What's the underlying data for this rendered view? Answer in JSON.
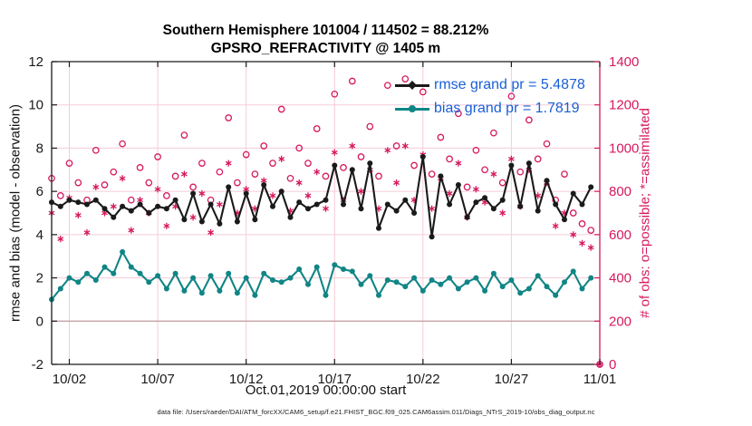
{
  "caption": "data file: /Users/raeder/DAI/ATM_forcXX/CAM6_setup/f.e21.FHIST_BGC.f09_025.CAM6assim.011/Diags_NTrS_2019-10/obs_diag_output.nc",
  "colors": {
    "pink": "#d6185e",
    "grid": "#f5ccd7",
    "zero_line": "#c7a3a8",
    "teal": "#118585",
    "black": "#1a1a1a",
    "legend_text": "#1a5fd7",
    "axis_text": "#1a1a1a"
  },
  "chart_data": {
    "type": "line",
    "title_line1": "Southern Hemisphere 101004 / 114502 = 88.212%",
    "title_line2": "GPSRO_REFRACTIVITY @ 1405 m",
    "xlabel": "Oct.01,2019 00:00:00 start",
    "ylabel_left": "rmse and bias (model - observation)",
    "ylabel_right": "# of obs: o=possible; *=assimilated",
    "grid": true,
    "legend": {
      "position": "upper-right-inside",
      "rmse_label": "rmse grand pr = 5.4878",
      "bias_label": "bias grand pr = 1.7819"
    },
    "x_start": "2019-10-01 00:00:00",
    "x_span_days": 31,
    "x_step_days": 0.5,
    "x_ticks": {
      "positions_days": [
        1,
        6,
        11,
        16,
        21,
        26,
        31
      ],
      "labels": [
        "10/02",
        "10/07",
        "10/12",
        "10/17",
        "10/22",
        "10/27",
        "11/01"
      ]
    },
    "y_left": {
      "min": -2,
      "max": 12,
      "ticks": [
        -2,
        0,
        2,
        4,
        6,
        8,
        10,
        12
      ]
    },
    "y_right": {
      "min": 0,
      "max": 1400,
      "ticks": [
        0,
        200,
        400,
        600,
        800,
        1000,
        1200,
        1400
      ]
    },
    "zero_reference_left": 0,
    "series": [
      {
        "name": "rmse",
        "axis": "left",
        "style": "line",
        "marker": "filled-circle",
        "color_key": "black",
        "grand_mean": 5.4878,
        "values": [
          5.5,
          5.3,
          5.6,
          5.5,
          5.4,
          5.6,
          5.2,
          4.8,
          5.3,
          5.1,
          5.4,
          5.0,
          5.3,
          5.2,
          5.6,
          4.7,
          5.9,
          4.6,
          5.4,
          4.5,
          6.2,
          4.6,
          5.9,
          4.7,
          6.3,
          5.3,
          6.0,
          4.8,
          5.5,
          5.2,
          5.4,
          5.6,
          7.2,
          5.4,
          7.0,
          5.2,
          7.3,
          4.3,
          5.4,
          5.1,
          5.6,
          5.0,
          7.6,
          3.9,
          6.7,
          5.4,
          6.3,
          4.8,
          5.5,
          5.7,
          5.2,
          5.6,
          7.2,
          5.3,
          7.3,
          5.1,
          6.5,
          5.4,
          4.7,
          5.9,
          5.4,
          6.2,
          null
        ]
      },
      {
        "name": "bias",
        "axis": "left",
        "style": "line",
        "marker": "filled-circle",
        "color_key": "teal",
        "grand_mean": 1.7819,
        "values": [
          1.0,
          1.5,
          2.0,
          1.8,
          2.2,
          1.9,
          2.5,
          2.2,
          3.2,
          2.5,
          2.2,
          1.8,
          2.1,
          1.5,
          2.2,
          1.4,
          2.0,
          1.3,
          2.1,
          1.4,
          2.2,
          1.3,
          2.0,
          1.2,
          2.2,
          1.9,
          1.8,
          2.0,
          2.4,
          1.7,
          2.5,
          1.2,
          2.6,
          2.4,
          2.3,
          1.7,
          2.1,
          1.2,
          1.9,
          1.8,
          1.6,
          2.0,
          1.4,
          1.9,
          1.7,
          2.0,
          1.5,
          1.8,
          2.0,
          1.4,
          2.2,
          1.6,
          1.9,
          1.3,
          1.5,
          2.1,
          1.6,
          1.2,
          1.8,
          2.3,
          1.5,
          2.0,
          null
        ]
      },
      {
        "name": "possible_obs",
        "axis": "right",
        "style": "scatter",
        "marker": "open-circle",
        "color_key": "pink",
        "values": [
          860,
          780,
          930,
          840,
          760,
          990,
          830,
          890,
          1020,
          760,
          910,
          840,
          960,
          780,
          870,
          1060,
          820,
          930,
          760,
          890,
          1140,
          840,
          970,
          880,
          1010,
          930,
          1180,
          860,
          1000,
          930,
          1090,
          870,
          1250,
          910,
          1310,
          960,
          1100,
          870,
          1290,
          1010,
          1320,
          920,
          1260,
          880,
          1050,
          950,
          1160,
          820,
          990,
          900,
          1070,
          840,
          1240,
          890,
          1130,
          950,
          1020,
          760,
          880,
          700,
          650,
          620,
          0
        ]
      },
      {
        "name": "assimilated_obs",
        "axis": "right",
        "style": "scatter",
        "marker": "asterisk",
        "color_key": "pink",
        "values": [
          700,
          580,
          770,
          690,
          610,
          820,
          700,
          730,
          860,
          620,
          760,
          700,
          810,
          640,
          730,
          880,
          680,
          790,
          610,
          740,
          930,
          700,
          810,
          720,
          850,
          780,
          950,
          710,
          840,
          780,
          890,
          720,
          980,
          760,
          1010,
          800,
          900,
          720,
          990,
          840,
          1010,
          760,
          970,
          720,
          860,
          790,
          930,
          680,
          810,
          750,
          880,
          700,
          950,
          730,
          900,
          780,
          840,
          640,
          700,
          600,
          560,
          540,
          0
        ]
      }
    ]
  }
}
